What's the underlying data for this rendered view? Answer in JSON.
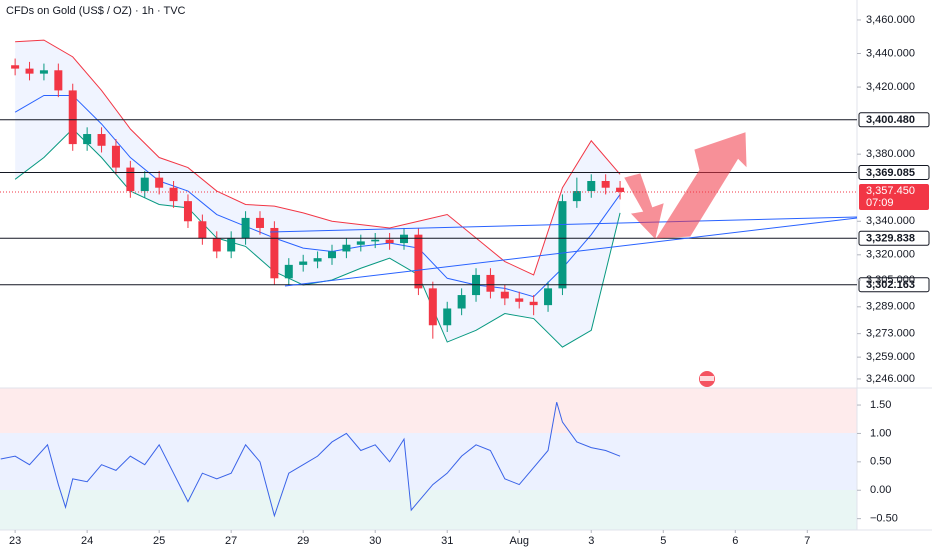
{
  "chart_data": [
    {
      "type": "candlestick",
      "title": "CFDs on Gold (US$ / OZ) · 1h · TVC",
      "x": [
        0,
        0.2,
        0.4,
        0.6,
        0.8,
        1,
        1.2,
        1.4,
        1.6,
        1.8,
        2,
        2.2,
        2.4,
        2.6,
        2.8,
        3,
        3.2,
        3.4,
        3.6,
        3.8,
        4,
        4.2,
        4.4,
        4.6,
        4.8,
        5,
        5.2,
        5.4,
        5.6,
        5.8,
        6,
        6.2,
        6.4,
        6.6,
        6.8,
        7,
        7.2,
        7.4,
        7.6,
        7.8,
        8,
        8.2,
        8.4
      ],
      "open": [
        3433,
        3431,
        3428,
        3430,
        3418,
        3386,
        3392,
        3385,
        3372,
        3358,
        3366,
        3360,
        3352,
        3340,
        3330,
        3322,
        3330,
        3342,
        3336,
        3306,
        3314,
        3316,
        3318,
        3322,
        3326,
        3328,
        3329,
        3327,
        3332,
        3300,
        3278,
        3288,
        3296,
        3308,
        3298,
        3294,
        3292,
        3290,
        3300,
        3352,
        3358,
        3364,
        3360
      ],
      "high": [
        3437,
        3435,
        3434,
        3434,
        3422,
        3396,
        3396,
        3389,
        3376,
        3370,
        3370,
        3364,
        3356,
        3344,
        3334,
        3334,
        3346,
        3346,
        3340,
        3318,
        3320,
        3322,
        3326,
        3330,
        3332,
        3333,
        3333,
        3336,
        3336,
        3304,
        3292,
        3300,
        3312,
        3312,
        3302,
        3298,
        3296,
        3304,
        3356,
        3366,
        3368,
        3368,
        3364
      ],
      "low": [
        3427,
        3424,
        3424,
        3414,
        3382,
        3382,
        3381,
        3368,
        3354,
        3354,
        3356,
        3348,
        3336,
        3326,
        3318,
        3318,
        3326,
        3332,
        3302,
        3302,
        3310,
        3312,
        3314,
        3318,
        3322,
        3324,
        3323,
        3323,
        3296,
        3270,
        3274,
        3284,
        3292,
        3294,
        3290,
        3288,
        3284,
        3286,
        3296,
        3348,
        3354,
        3356,
        3353
      ],
      "close": [
        3431,
        3428,
        3430,
        3418,
        3386,
        3392,
        3385,
        3372,
        3358,
        3366,
        3360,
        3352,
        3340,
        3330,
        3322,
        3330,
        3342,
        3336,
        3306,
        3314,
        3316,
        3318,
        3322,
        3326,
        3328,
        3329,
        3327,
        3332,
        3300,
        3278,
        3288,
        3296,
        3308,
        3298,
        3294,
        3292,
        3290,
        3300,
        3352,
        3358,
        3364,
        3360,
        3357.45
      ],
      "up_color": "#089981",
      "down_color": "#f23645",
      "band_x": [
        0,
        0.4,
        0.8,
        1.2,
        1.6,
        2,
        2.4,
        2.8,
        3.2,
        3.6,
        4,
        4.4,
        4.8,
        5.2,
        5.6,
        6,
        6.4,
        6.8,
        7.2,
        7.6,
        8,
        8.4
      ],
      "bands": [
        {
          "color": "#f23645",
          "values": [
            3447,
            3448,
            3438,
            3418,
            3395,
            3378,
            3372,
            3358,
            3350,
            3349,
            3345,
            3340,
            3338,
            3336,
            3340,
            3344,
            3330,
            3316,
            3308,
            3360,
            3388,
            3368
          ]
        },
        {
          "color": "#2962ff",
          "values": [
            3405,
            3415,
            3415,
            3398,
            3378,
            3364,
            3358,
            3344,
            3337,
            3330,
            3324,
            3322,
            3325,
            3327,
            3324,
            3306,
            3302,
            3300,
            3295,
            3312,
            3332,
            3356
          ]
        },
        {
          "color": "#089981",
          "values": [
            3365,
            3378,
            3395,
            3378,
            3358,
            3350,
            3348,
            3330,
            3325,
            3310,
            3302,
            3305,
            3312,
            3318,
            3308,
            3268,
            3275,
            3285,
            3282,
            3265,
            3275,
            3345
          ]
        }
      ],
      "xlim": [
        -0.21,
        11.69
      ],
      "ylim": [
        3240.6,
        3471.9
      ],
      "yticks": [
        {
          "value": 3460,
          "label": "3,460.000"
        },
        {
          "value": 3440,
          "label": "3,440.000"
        },
        {
          "value": 3420,
          "label": "3,420.000"
        },
        {
          "value": 3380,
          "label": "3,380.000"
        },
        {
          "value": 3340,
          "label": "3,340.000"
        },
        {
          "value": 3320,
          "label": "3,320.000"
        },
        {
          "value": 3305,
          "label": "3,305.000"
        },
        {
          "value": 3289,
          "label": "3,289.000"
        },
        {
          "value": 3273,
          "label": "3,273.000"
        },
        {
          "value": 3259,
          "label": "3,259.000"
        },
        {
          "value": 3246,
          "label": "3,246.000"
        }
      ],
      "levels": [
        {
          "value": 3400.48,
          "label": "3,400.480"
        },
        {
          "value": 3369.085,
          "label": "3,369.085"
        },
        {
          "value": 3329.838,
          "label": "3,329.838"
        },
        {
          "value": 3302.163,
          "label": "3,302.163"
        }
      ],
      "last": {
        "value": 3357.45,
        "label": "3,357.450",
        "countdown": "07:09",
        "color": "#f23645"
      }
    },
    {
      "type": "line",
      "color": "#3a63e8",
      "x": [
        -0.2,
        0,
        0.2,
        0.45,
        0.6,
        0.7,
        0.8,
        1,
        1.2,
        1.4,
        1.6,
        1.8,
        2,
        2.2,
        2.4,
        2.6,
        2.8,
        3,
        3.2,
        3.4,
        3.6,
        3.8,
        4,
        4.2,
        4.4,
        4.6,
        4.8,
        5,
        5.2,
        5.4,
        5.5,
        5.6,
        5.8,
        6,
        6.2,
        6.4,
        6.6,
        6.8,
        7,
        7.2,
        7.4,
        7.52,
        7.6,
        7.8,
        8,
        8.2,
        8.4
      ],
      "values": [
        0.55,
        0.6,
        0.45,
        0.8,
        0.1,
        -0.3,
        0.2,
        0.15,
        0.45,
        0.35,
        0.6,
        0.45,
        0.8,
        0.3,
        -0.2,
        0.3,
        0.2,
        0.3,
        0.8,
        0.5,
        -0.45,
        0.3,
        0.45,
        0.6,
        0.85,
        1.0,
        0.7,
        0.8,
        0.5,
        0.9,
        -0.35,
        -0.2,
        0.1,
        0.3,
        0.6,
        0.8,
        0.7,
        0.2,
        0.1,
        0.4,
        0.7,
        1.55,
        1.2,
        0.85,
        0.75,
        0.7,
        0.6
      ],
      "xlim": [
        -0.21,
        11.69
      ],
      "ylim": [
        -0.7,
        1.8
      ],
      "yticks": [
        {
          "value": 1.5,
          "label": "1.50"
        },
        {
          "value": 1,
          "label": "1.00"
        },
        {
          "value": 0.5,
          "label": "0.50"
        },
        {
          "value": 0,
          "label": "0.00"
        },
        {
          "value": -0.5,
          "label": "−0.50"
        }
      ],
      "xticks": [
        {
          "value": 0,
          "label": "23"
        },
        {
          "value": 1,
          "label": "24"
        },
        {
          "value": 2,
          "label": "25"
        },
        {
          "value": 3,
          "label": "27"
        },
        {
          "value": 4,
          "label": "29"
        },
        {
          "value": 5,
          "label": "30"
        },
        {
          "value": 6,
          "label": "31"
        },
        {
          "value": 7,
          "label": "Aug"
        },
        {
          "value": 8,
          "label": "3"
        },
        {
          "value": 9,
          "label": "5"
        },
        {
          "value": 10,
          "label": "6"
        },
        {
          "value": 11,
          "label": "7"
        }
      ]
    }
  ]
}
